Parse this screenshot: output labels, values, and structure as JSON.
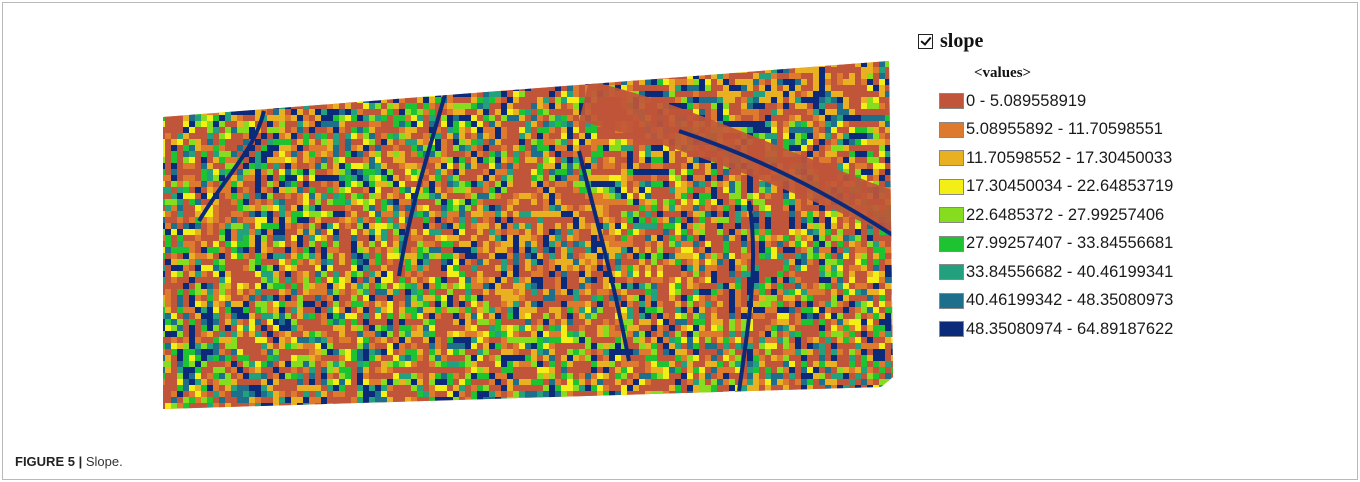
{
  "figure": {
    "number": "FIGURE 5 |",
    "caption": " Slope."
  },
  "legend": {
    "layer_checked": true,
    "layer_name": "slope",
    "values_heading": "<values>",
    "classes": [
      {
        "range": "0 - 5.089558919",
        "color": "#c0553a"
      },
      {
        "range": "5.08955892 - 11.70598551",
        "color": "#dd7a2d"
      },
      {
        "range": "11.70598552 - 17.30450033",
        "color": "#e9b022"
      },
      {
        "range": "17.30450034 - 22.64853719",
        "color": "#f4ee17"
      },
      {
        "range": "22.6485372 - 27.99257406",
        "color": "#86dc1f"
      },
      {
        "range": "27.99257407 - 33.84556681",
        "color": "#1ec331"
      },
      {
        "range": "33.84556682 - 40.46199341",
        "color": "#23a07e"
      },
      {
        "range": "40.46199342 - 48.35080973",
        "color": "#1d6f8b"
      },
      {
        "range": "48.35080974 - 64.89187622",
        "color": "#0c2a7a"
      }
    ]
  }
}
